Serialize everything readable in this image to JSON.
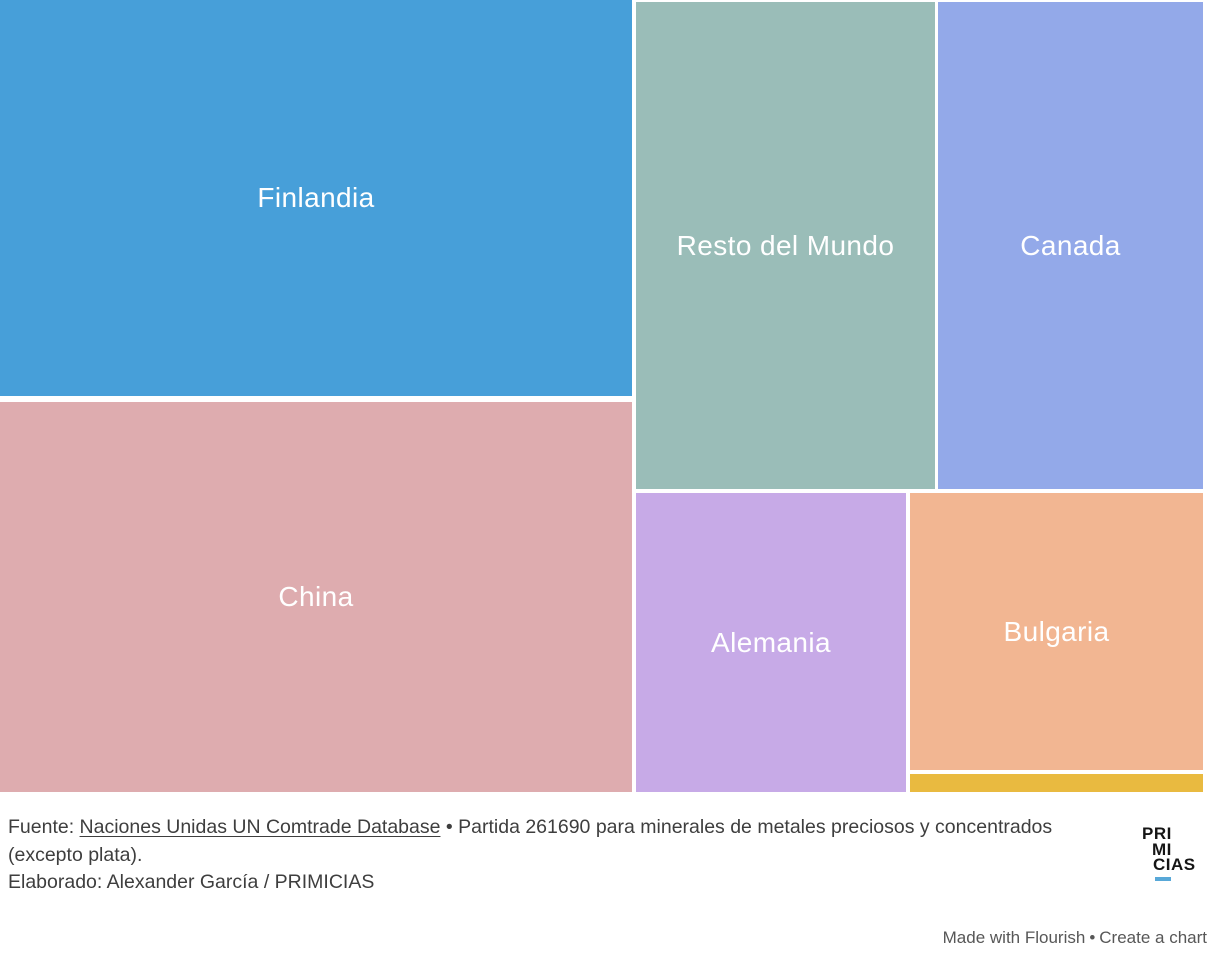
{
  "chart_data": {
    "type": "treemap",
    "title": "",
    "legend": "none",
    "cells": [
      {
        "label": "Finlandia",
        "color": "#479FD9",
        "area_share_pct_estimated": 26.7
      },
      {
        "label": "China",
        "color": "#DEACAF",
        "area_share_pct_estimated": 26.3
      },
      {
        "label": "Resto del Mundo",
        "color": "#9ABDB8",
        "area_share_pct_estimated": 15.5
      },
      {
        "label": "Canada",
        "color": "#93A9E9",
        "area_share_pct_estimated": 13.8
      },
      {
        "label": "Alemania",
        "color": "#C7AAE7",
        "area_share_pct_estimated": 8.6
      },
      {
        "label": "Bulgaria",
        "color": "#F2B692",
        "area_share_pct_estimated": 8.6
      },
      {
        "label": "",
        "color": "#E9BA40",
        "area_share_pct_estimated": 0.6
      }
    ]
  },
  "footer": {
    "source_prefix": "Fuente: ",
    "source_link": "Naciones Unidas UN Comtrade Database",
    "source_rest": " • Partida 261690 para minerales de metales preciosos y concentrados (excepto plata).",
    "elaborated": "Elaborado: Alexander García / PRIMICIAS"
  },
  "logo": {
    "line1": "PRI",
    "line2": "MI",
    "line3": "CIAS",
    "accent_color": "#58A8D8"
  },
  "credit": {
    "made_with": "Made with Flourish",
    "separator": "•",
    "create": "Create a chart"
  }
}
